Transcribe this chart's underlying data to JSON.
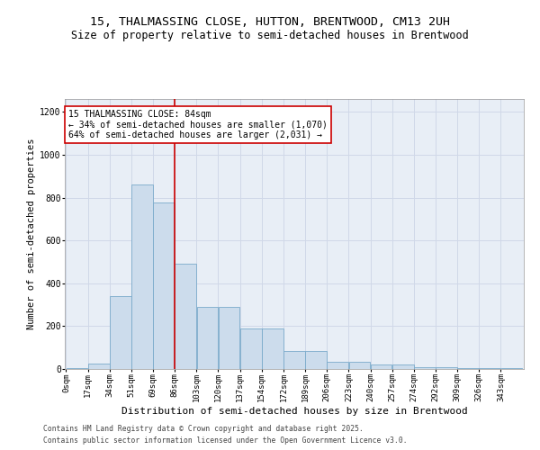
{
  "title1": "15, THALMASSING CLOSE, HUTTON, BRENTWOOD, CM13 2UH",
  "title2": "Size of property relative to semi-detached houses in Brentwood",
  "xlabel": "Distribution of semi-detached houses by size in Brentwood",
  "ylabel": "Number of semi-detached properties",
  "annotation_title": "15 THALMASSING CLOSE: 84sqm",
  "annotation_line1": "← 34% of semi-detached houses are smaller (1,070)",
  "annotation_line2": "64% of semi-detached houses are larger (2,031) →",
  "footer1": "Contains HM Land Registry data © Crown copyright and database right 2025.",
  "footer2": "Contains public sector information licensed under the Open Government Licence v3.0.",
  "bar_values": [
    5,
    25,
    340,
    860,
    775,
    490,
    290,
    290,
    190,
    190,
    85,
    85,
    35,
    35,
    20,
    20,
    10,
    10,
    5,
    5,
    5
  ],
  "bin_labels": [
    "0sqm",
    "17sqm",
    "34sqm",
    "51sqm",
    "69sqm",
    "86sqm",
    "103sqm",
    "120sqm",
    "137sqm",
    "154sqm",
    "172sqm",
    "189sqm",
    "206sqm",
    "223sqm",
    "240sqm",
    "257sqm",
    "274sqm",
    "292sqm",
    "309sqm",
    "326sqm",
    "343sqm"
  ],
  "bar_color": "#ccdcec",
  "bar_edge_color": "#7aaaca",
  "grid_color": "#d0d8e8",
  "bg_color": "#e8eef6",
  "red_line_color": "#cc0000",
  "annotation_box_color": "#ffffff",
  "annotation_border_color": "#cc0000",
  "ylim": [
    0,
    1260
  ],
  "yticks": [
    0,
    200,
    400,
    600,
    800,
    1000,
    1200
  ],
  "bin_width": 17,
  "red_line_bin": 5,
  "title_fontsize": 9.5,
  "subtitle_fontsize": 8.5,
  "tick_fontsize": 6.5,
  "ylabel_fontsize": 7.5,
  "xlabel_fontsize": 8,
  "ann_fontsize": 7,
  "footer_fontsize": 5.8
}
